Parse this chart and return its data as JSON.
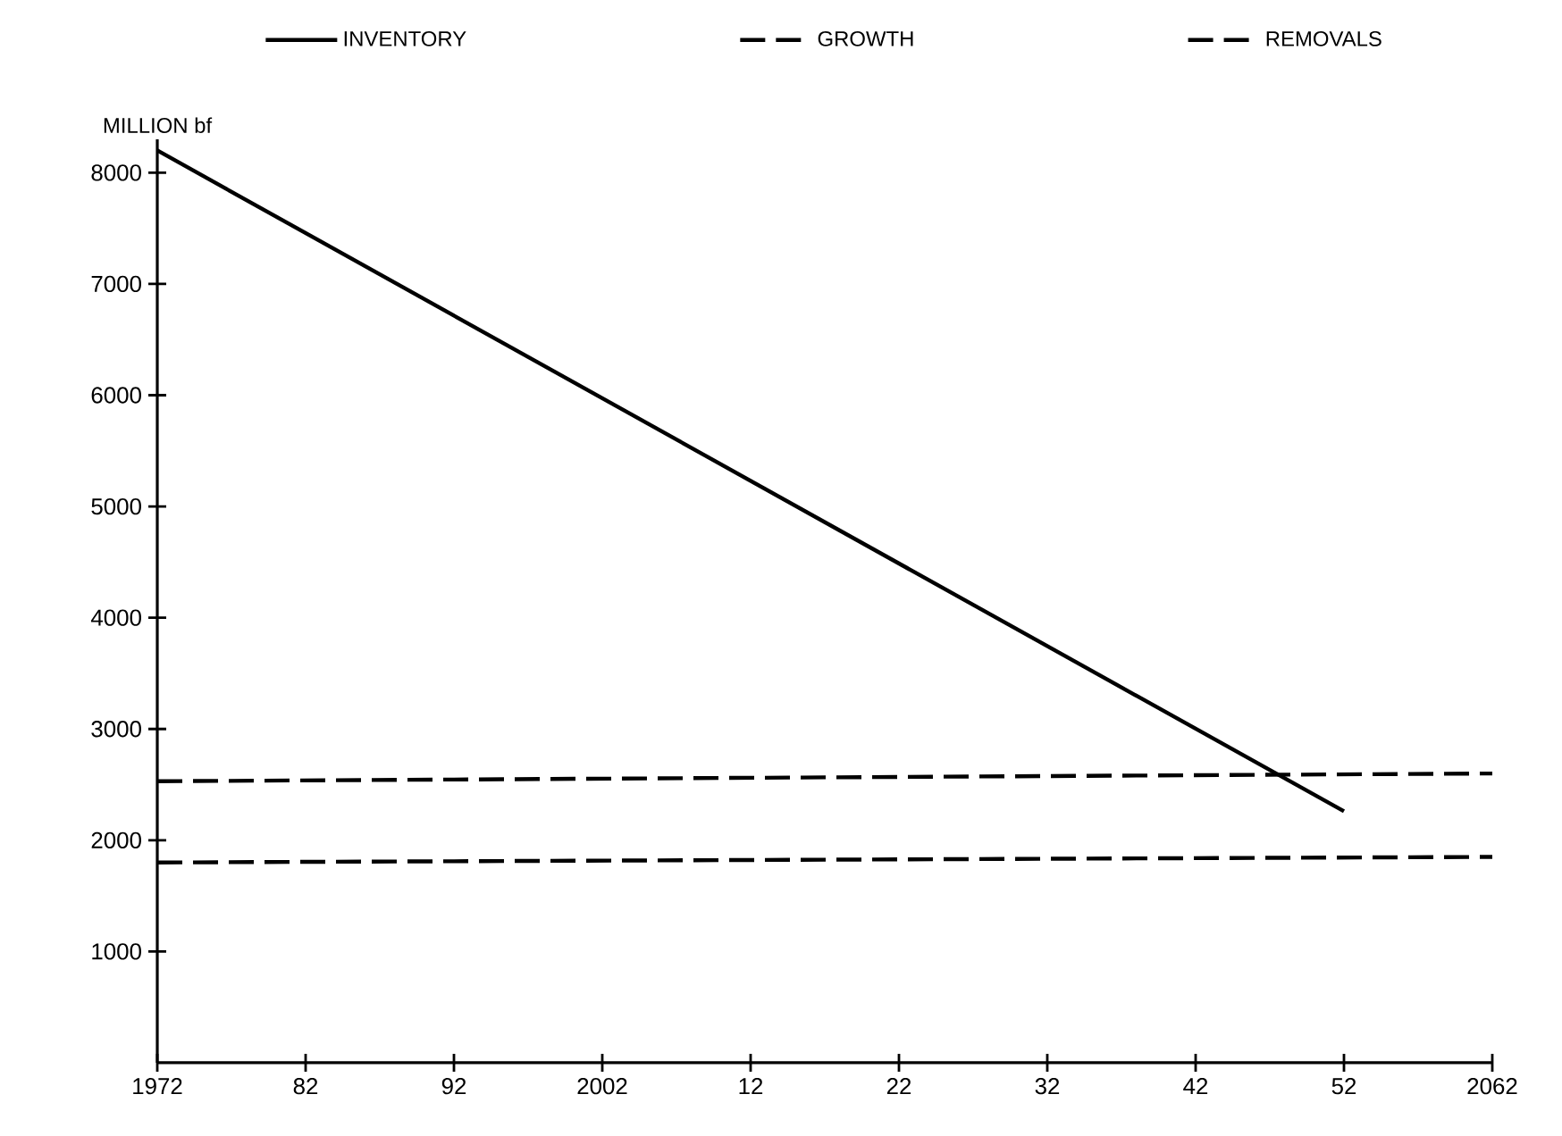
{
  "chart_data": {
    "type": "line",
    "ylabel": "MILLION bf",
    "x": [
      1972,
      2062
    ],
    "series": [
      {
        "name": "INVENTORY",
        "color": "#000000",
        "line_style": "solid",
        "x": [
          1972,
          2052
        ],
        "values": [
          8200,
          2260
        ]
      },
      {
        "name": "GROWTH",
        "color": "#000000",
        "line_style": "dashed",
        "values": [
          1800,
          1850
        ]
      },
      {
        "name": "REMOVALS",
        "color": "#000000",
        "line_style": "dashed",
        "values": [
          2530,
          2600
        ]
      }
    ],
    "xlim": [
      1972,
      2062
    ],
    "ylim": [
      0,
      8300
    ],
    "xticks": [
      {
        "value": 1972,
        "label": "1972"
      },
      {
        "value": 1982,
        "label": "82"
      },
      {
        "value": 1992,
        "label": "92"
      },
      {
        "value": 2002,
        "label": "2002"
      },
      {
        "value": 2012,
        "label": "12"
      },
      {
        "value": 2022,
        "label": "22"
      },
      {
        "value": 2032,
        "label": "32"
      },
      {
        "value": 2042,
        "label": "42"
      },
      {
        "value": 2052,
        "label": "52"
      },
      {
        "value": 2062,
        "label": "2062"
      }
    ],
    "yticks": [
      1000,
      2000,
      3000,
      4000,
      5000,
      6000,
      7000,
      8000
    ],
    "legend": "top",
    "grid": false,
    "marker": "none"
  }
}
